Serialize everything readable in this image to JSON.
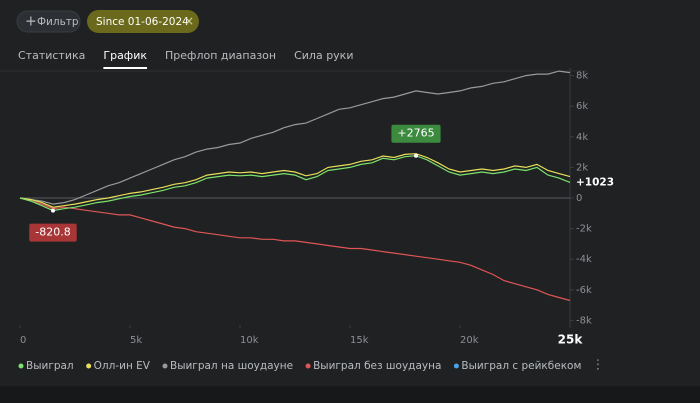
{
  "filter": {
    "button": "Фильтр",
    "chip": "Since 01-06-2024"
  },
  "tabs": [
    {
      "label": "Статистика",
      "active": false
    },
    {
      "label": "График",
      "active": true
    },
    {
      "label": "Префлоп диапазон",
      "active": false
    },
    {
      "label": "Сила руки",
      "active": false
    }
  ],
  "chart_data": {
    "type": "line",
    "x": [
      0,
      500,
      1000,
      1500,
      2000,
      2500,
      3000,
      3500,
      4000,
      4500,
      5000,
      5500,
      6000,
      6500,
      7000,
      7500,
      8000,
      8500,
      9000,
      9500,
      10000,
      10500,
      11000,
      11500,
      12000,
      12500,
      13000,
      13500,
      14000,
      14500,
      15000,
      15500,
      16000,
      16500,
      17000,
      17500,
      18000,
      18500,
      19000,
      19500,
      20000,
      20500,
      21000,
      21500,
      22000,
      22500,
      23000,
      23500,
      24000,
      24500,
      25000
    ],
    "xlim": [
      0,
      25000
    ],
    "xticks": [
      0,
      {
        "value": 5000,
        "label": "5k"
      },
      {
        "value": 10000,
        "label": "10k"
      },
      {
        "value": 15000,
        "label": "15k"
      },
      {
        "value": 20000,
        "label": "20k"
      },
      {
        "value": 25000,
        "label": "25k"
      }
    ],
    "ylim": [
      -8300,
      8500
    ],
    "yticks": [
      {
        "value": 8000,
        "label": "8k"
      },
      {
        "value": 6000,
        "label": "6k"
      },
      {
        "value": 4000,
        "label": "4k"
      },
      {
        "value": 2000,
        "label": "2k"
      },
      0,
      {
        "value": -2000,
        "label": "-2k"
      },
      {
        "value": -4000,
        "label": "-4k"
      },
      {
        "value": -6000,
        "label": "-6k"
      },
      {
        "value": -8000,
        "label": "-8k"
      }
    ],
    "series": [
      {
        "name": "Выиграл",
        "color": "#7be36b",
        "values": [
          0,
          -200,
          -500,
          -820.8,
          -700,
          -600,
          -450,
          -300,
          -200,
          -50,
          100,
          200,
          350,
          500,
          700,
          800,
          1000,
          1300,
          1400,
          1500,
          1450,
          1500,
          1400,
          1500,
          1600,
          1500,
          1200,
          1400,
          1800,
          1900,
          2000,
          2200,
          2300,
          2600,
          2500,
          2700,
          2765,
          2500,
          2100,
          1700,
          1500,
          1600,
          1700,
          1600,
          1700,
          1900,
          1800,
          2000,
          1500,
          1300,
          1023
        ]
      },
      {
        "name": "Олл-ин EV",
        "color": "#e8e05a",
        "values": [
          0,
          -100,
          -300,
          -600,
          -500,
          -400,
          -250,
          -100,
          0,
          150,
          300,
          400,
          550,
          700,
          900,
          1000,
          1200,
          1500,
          1600,
          1700,
          1650,
          1700,
          1600,
          1700,
          1800,
          1700,
          1450,
          1600,
          2000,
          2100,
          2200,
          2400,
          2500,
          2750,
          2650,
          2850,
          2900,
          2650,
          2300,
          1900,
          1700,
          1800,
          1900,
          1800,
          1900,
          2100,
          2000,
          2200,
          1800,
          1600,
          1400
        ]
      },
      {
        "name": "Выиграл на шоудауне",
        "color": "#9a9a9a",
        "values": [
          0,
          -100,
          -200,
          -400,
          -300,
          -100,
          200,
          500,
          800,
          1000,
          1300,
          1600,
          1900,
          2200,
          2500,
          2700,
          3000,
          3200,
          3300,
          3500,
          3600,
          3900,
          4100,
          4300,
          4600,
          4800,
          4900,
          5200,
          5500,
          5800,
          5900,
          6100,
          6300,
          6500,
          6600,
          6800,
          7000,
          6900,
          6800,
          6900,
          7000,
          7200,
          7300,
          7500,
          7600,
          7800,
          8000,
          8100,
          8100,
          8300,
          8200
        ]
      },
      {
        "name": "Выиграл без шоудауна",
        "color": "#e05555",
        "values": [
          0,
          -200,
          -400,
          -700,
          -600,
          -700,
          -800,
          -900,
          -1000,
          -1100,
          -1100,
          -1300,
          -1500,
          -1700,
          -1900,
          -2000,
          -2200,
          -2300,
          -2400,
          -2500,
          -2600,
          -2600,
          -2700,
          -2700,
          -2800,
          -2800,
          -2900,
          -3000,
          -3100,
          -3200,
          -3300,
          -3300,
          -3400,
          -3500,
          -3600,
          -3700,
          -3800,
          -3900,
          -4000,
          -4100,
          -4200,
          -4400,
          -4700,
          -5000,
          -5400,
          -5600,
          -5800,
          -6000,
          -6300,
          -6500,
          -6700
        ]
      },
      {
        "name": "Выиграл с рейкбеком",
        "color": "#4aa3e8",
        "values": [
          null,
          null,
          null,
          null,
          null,
          null,
          null,
          null,
          null,
          null,
          null,
          null,
          null,
          null,
          null,
          null,
          null,
          null,
          null,
          null,
          null,
          null,
          null,
          null,
          null,
          null,
          null,
          null,
          null,
          null,
          null,
          null,
          null,
          null,
          null,
          null,
          null,
          null,
          null,
          null,
          null,
          null,
          null,
          null,
          null,
          null,
          null,
          null,
          null,
          null,
          null
        ]
      }
    ],
    "annotations": [
      {
        "x": 18000,
        "y": 2765,
        "label": "+2765",
        "color": "#3b8a3e"
      },
      {
        "x": 1500,
        "y": -820.8,
        "label": "-820.8",
        "color": "#a83636"
      },
      {
        "x": 25000,
        "y": 1023,
        "label": "+1023"
      }
    ]
  }
}
